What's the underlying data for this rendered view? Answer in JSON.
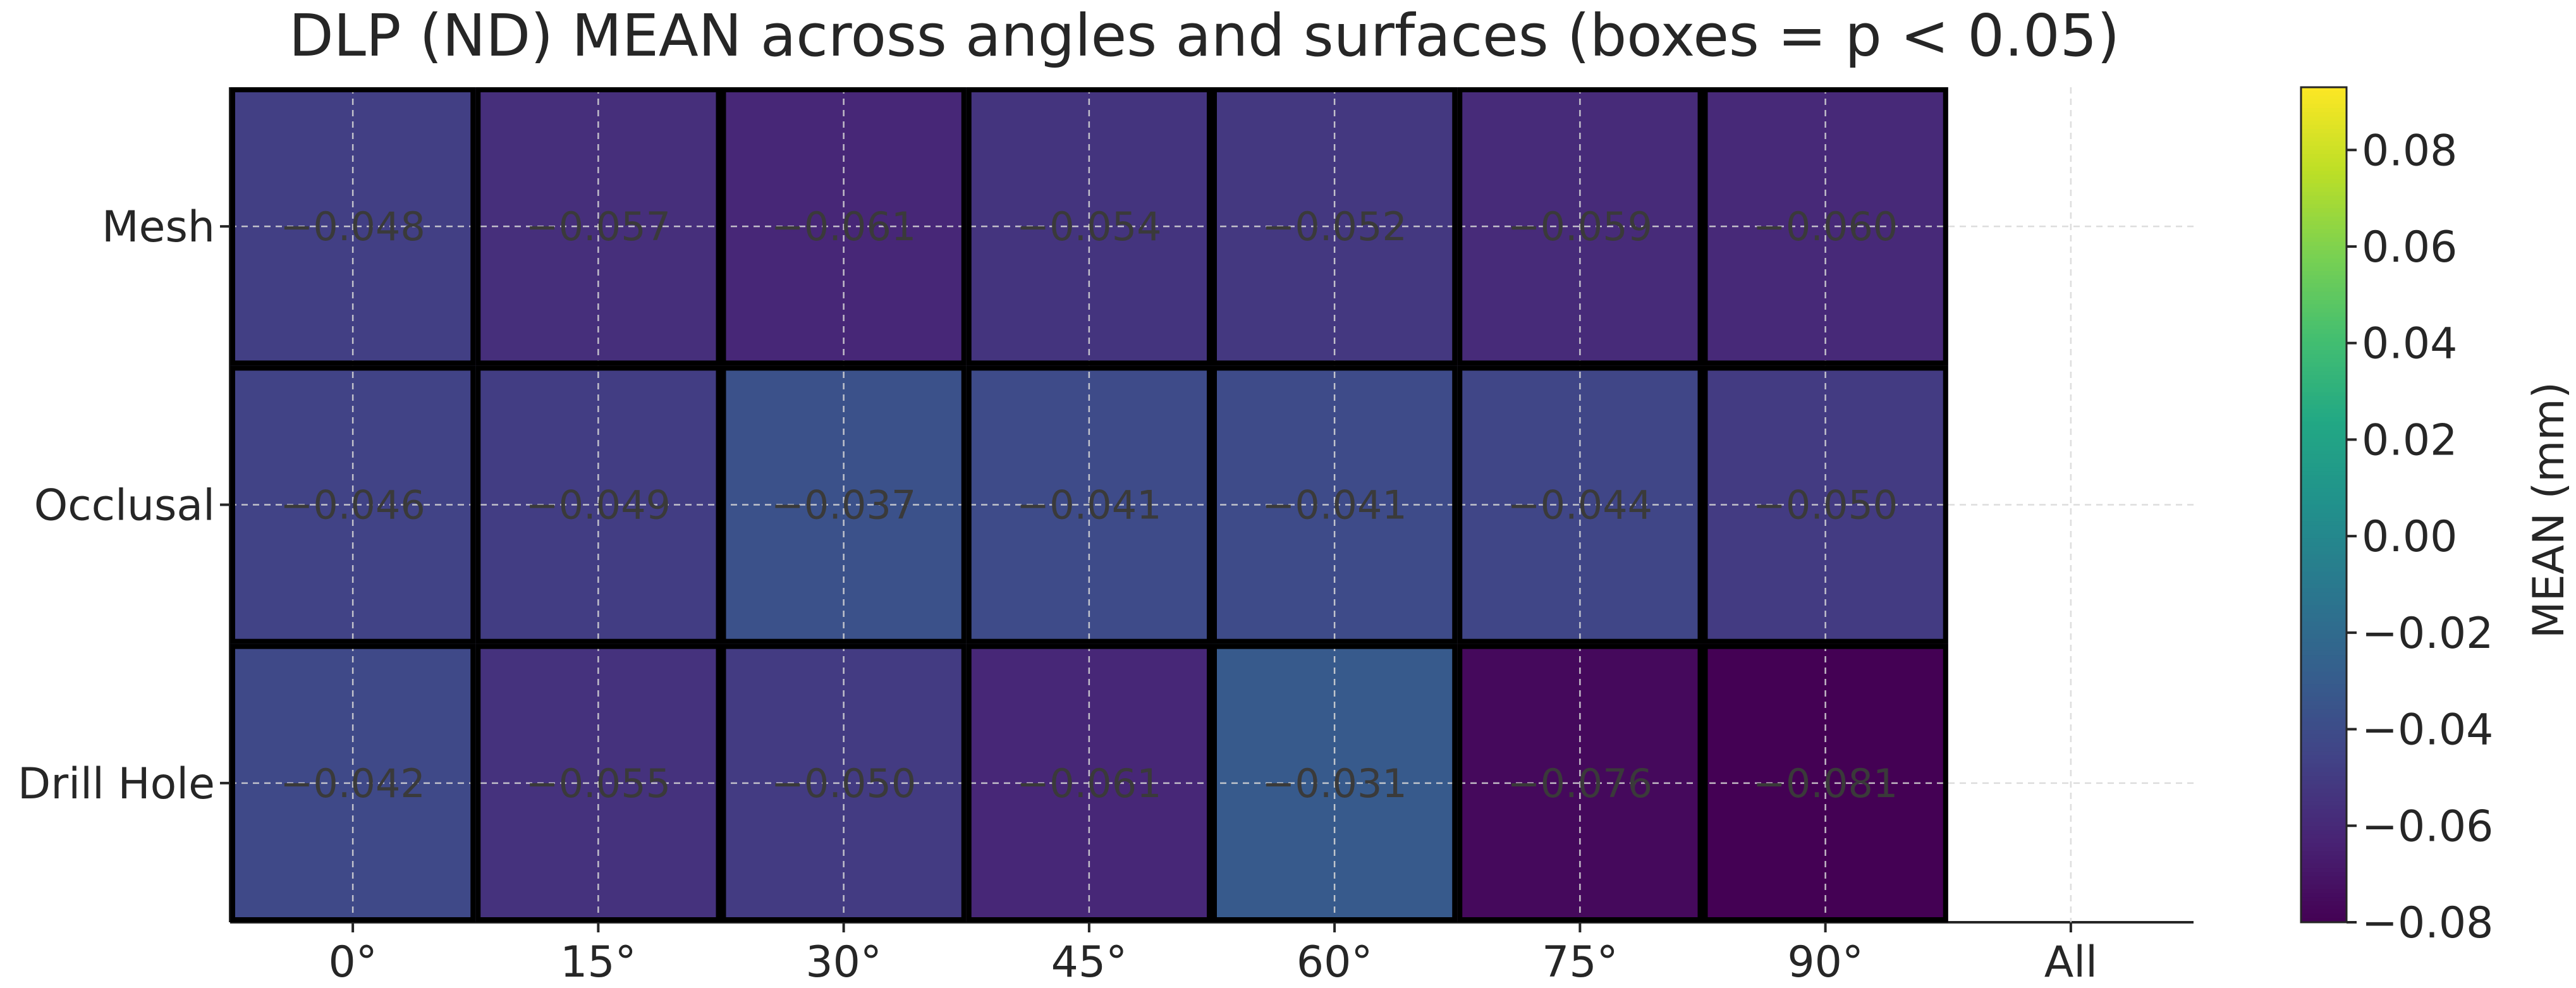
{
  "chart_data": {
    "type": "heatmap",
    "title": "DLP (ND) MEAN across angles and surfaces (boxes = p < 0.05)",
    "xlabel": "",
    "ylabel": "",
    "x_categories": [
      "0°",
      "15°",
      "30°",
      "45°",
      "60°",
      "75°",
      "90°",
      "All"
    ],
    "y_categories": [
      "Mesh",
      "Occlusal",
      "Drill Hole"
    ],
    "values": [
      [
        -0.048,
        -0.057,
        -0.061,
        -0.054,
        -0.052,
        -0.059,
        -0.06,
        null
      ],
      [
        -0.046,
        -0.049,
        -0.037,
        -0.041,
        -0.041,
        -0.044,
        -0.05,
        null
      ],
      [
        -0.042,
        -0.055,
        -0.05,
        -0.061,
        -0.031,
        -0.076,
        -0.081,
        null
      ]
    ],
    "value_labels": [
      [
        "−0.048",
        "−0.057",
        "−0.061",
        "−0.054",
        "−0.052",
        "−0.059",
        "−0.060",
        ""
      ],
      [
        "−0.046",
        "−0.049",
        "−0.037",
        "−0.041",
        "−0.041",
        "−0.044",
        "−0.050",
        ""
      ],
      [
        "−0.042",
        "−0.055",
        "−0.050",
        "−0.061",
        "−0.031",
        "−0.076",
        "−0.081",
        ""
      ]
    ],
    "significant": [
      [
        true,
        true,
        true,
        true,
        true,
        true,
        true,
        false
      ],
      [
        true,
        true,
        true,
        true,
        true,
        true,
        true,
        false
      ],
      [
        true,
        true,
        true,
        true,
        true,
        true,
        true,
        false
      ]
    ],
    "colormap": "viridis",
    "color_range": [
      -0.08,
      0.093
    ],
    "colorbar": {
      "label": "MEAN (mm)",
      "ticks": [
        -0.08,
        -0.06,
        -0.04,
        -0.02,
        0.0,
        0.02,
        0.04,
        0.06,
        0.08
      ],
      "tick_labels": [
        "−0.08",
        "−0.06",
        "−0.04",
        "−0.02",
        "0.00",
        "0.02",
        "0.04",
        "0.06",
        "0.08"
      ],
      "position": "right"
    },
    "grid": true
  }
}
